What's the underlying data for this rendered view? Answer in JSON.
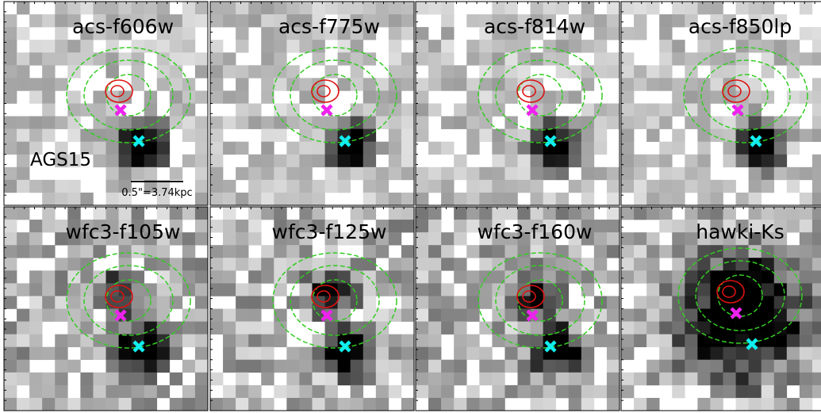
{
  "panels": [
    {
      "label": "acs-f606w"
    },
    {
      "label": "acs-f775w"
    },
    {
      "label": "acs-f814w"
    },
    {
      "label": "acs-f850lp"
    },
    {
      "label": "wfc3-f105w"
    },
    {
      "label": "wfc3-f125w"
    },
    {
      "label": "wfc3-f160w"
    },
    {
      "label": "hawki-Ks"
    }
  ],
  "source": "AGS15",
  "scale_bar": "0.5\"=3.74kpc"
}
